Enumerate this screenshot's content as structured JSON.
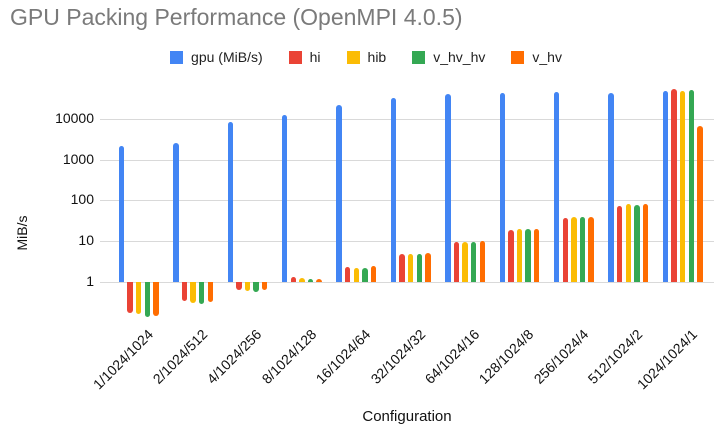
{
  "title": "GPU Packing Performance (OpenMPI 4.0.5)",
  "chart_data": {
    "type": "bar",
    "title": "GPU Packing Performance (OpenMPI 4.0.5)",
    "xlabel": "Configuration",
    "ylabel": "MiB/s",
    "y_scale": "log",
    "y_ticks": [
      1,
      10,
      100,
      1000,
      10000
    ],
    "ylim": [
      0.12,
      60000
    ],
    "grid": true,
    "legend_position": "top",
    "categories": [
      "1/1024/1024",
      "2/1024/512",
      "4/1024/256",
      "8/1024/128",
      "16/1024/64",
      "32/1024/32",
      "64/1024/16",
      "128/1024/8",
      "256/1024/4",
      "512/1024/2",
      "1024/1024/1"
    ],
    "series": [
      {
        "name": "gpu (MiB/s)",
        "color": "#4285F4",
        "values": [
          2100,
          2500,
          8200,
          12500,
          22000,
          32000,
          41000,
          43000,
          45000,
          43000,
          48000
        ]
      },
      {
        "name": "hi",
        "color": "#EA4335",
        "values": [
          0.17,
          0.34,
          0.65,
          1.3,
          2.3,
          4.8,
          9.5,
          19,
          37,
          74,
          53000
        ]
      },
      {
        "name": "hib",
        "color": "#FBBC04",
        "values": [
          0.16,
          0.31,
          0.61,
          1.25,
          2.2,
          4.8,
          9.8,
          20,
          39,
          82,
          48000
        ]
      },
      {
        "name": "v_hv_hv",
        "color": "#34A853",
        "values": [
          0.14,
          0.29,
          0.58,
          1.2,
          2.2,
          4.8,
          9.8,
          20,
          39,
          79,
          52000
        ]
      },
      {
        "name": "v_hv",
        "color": "#FF6D01",
        "values": [
          0.15,
          0.33,
          0.63,
          1.2,
          2.4,
          5.0,
          10,
          20,
          39,
          82,
          6800
        ]
      }
    ]
  }
}
